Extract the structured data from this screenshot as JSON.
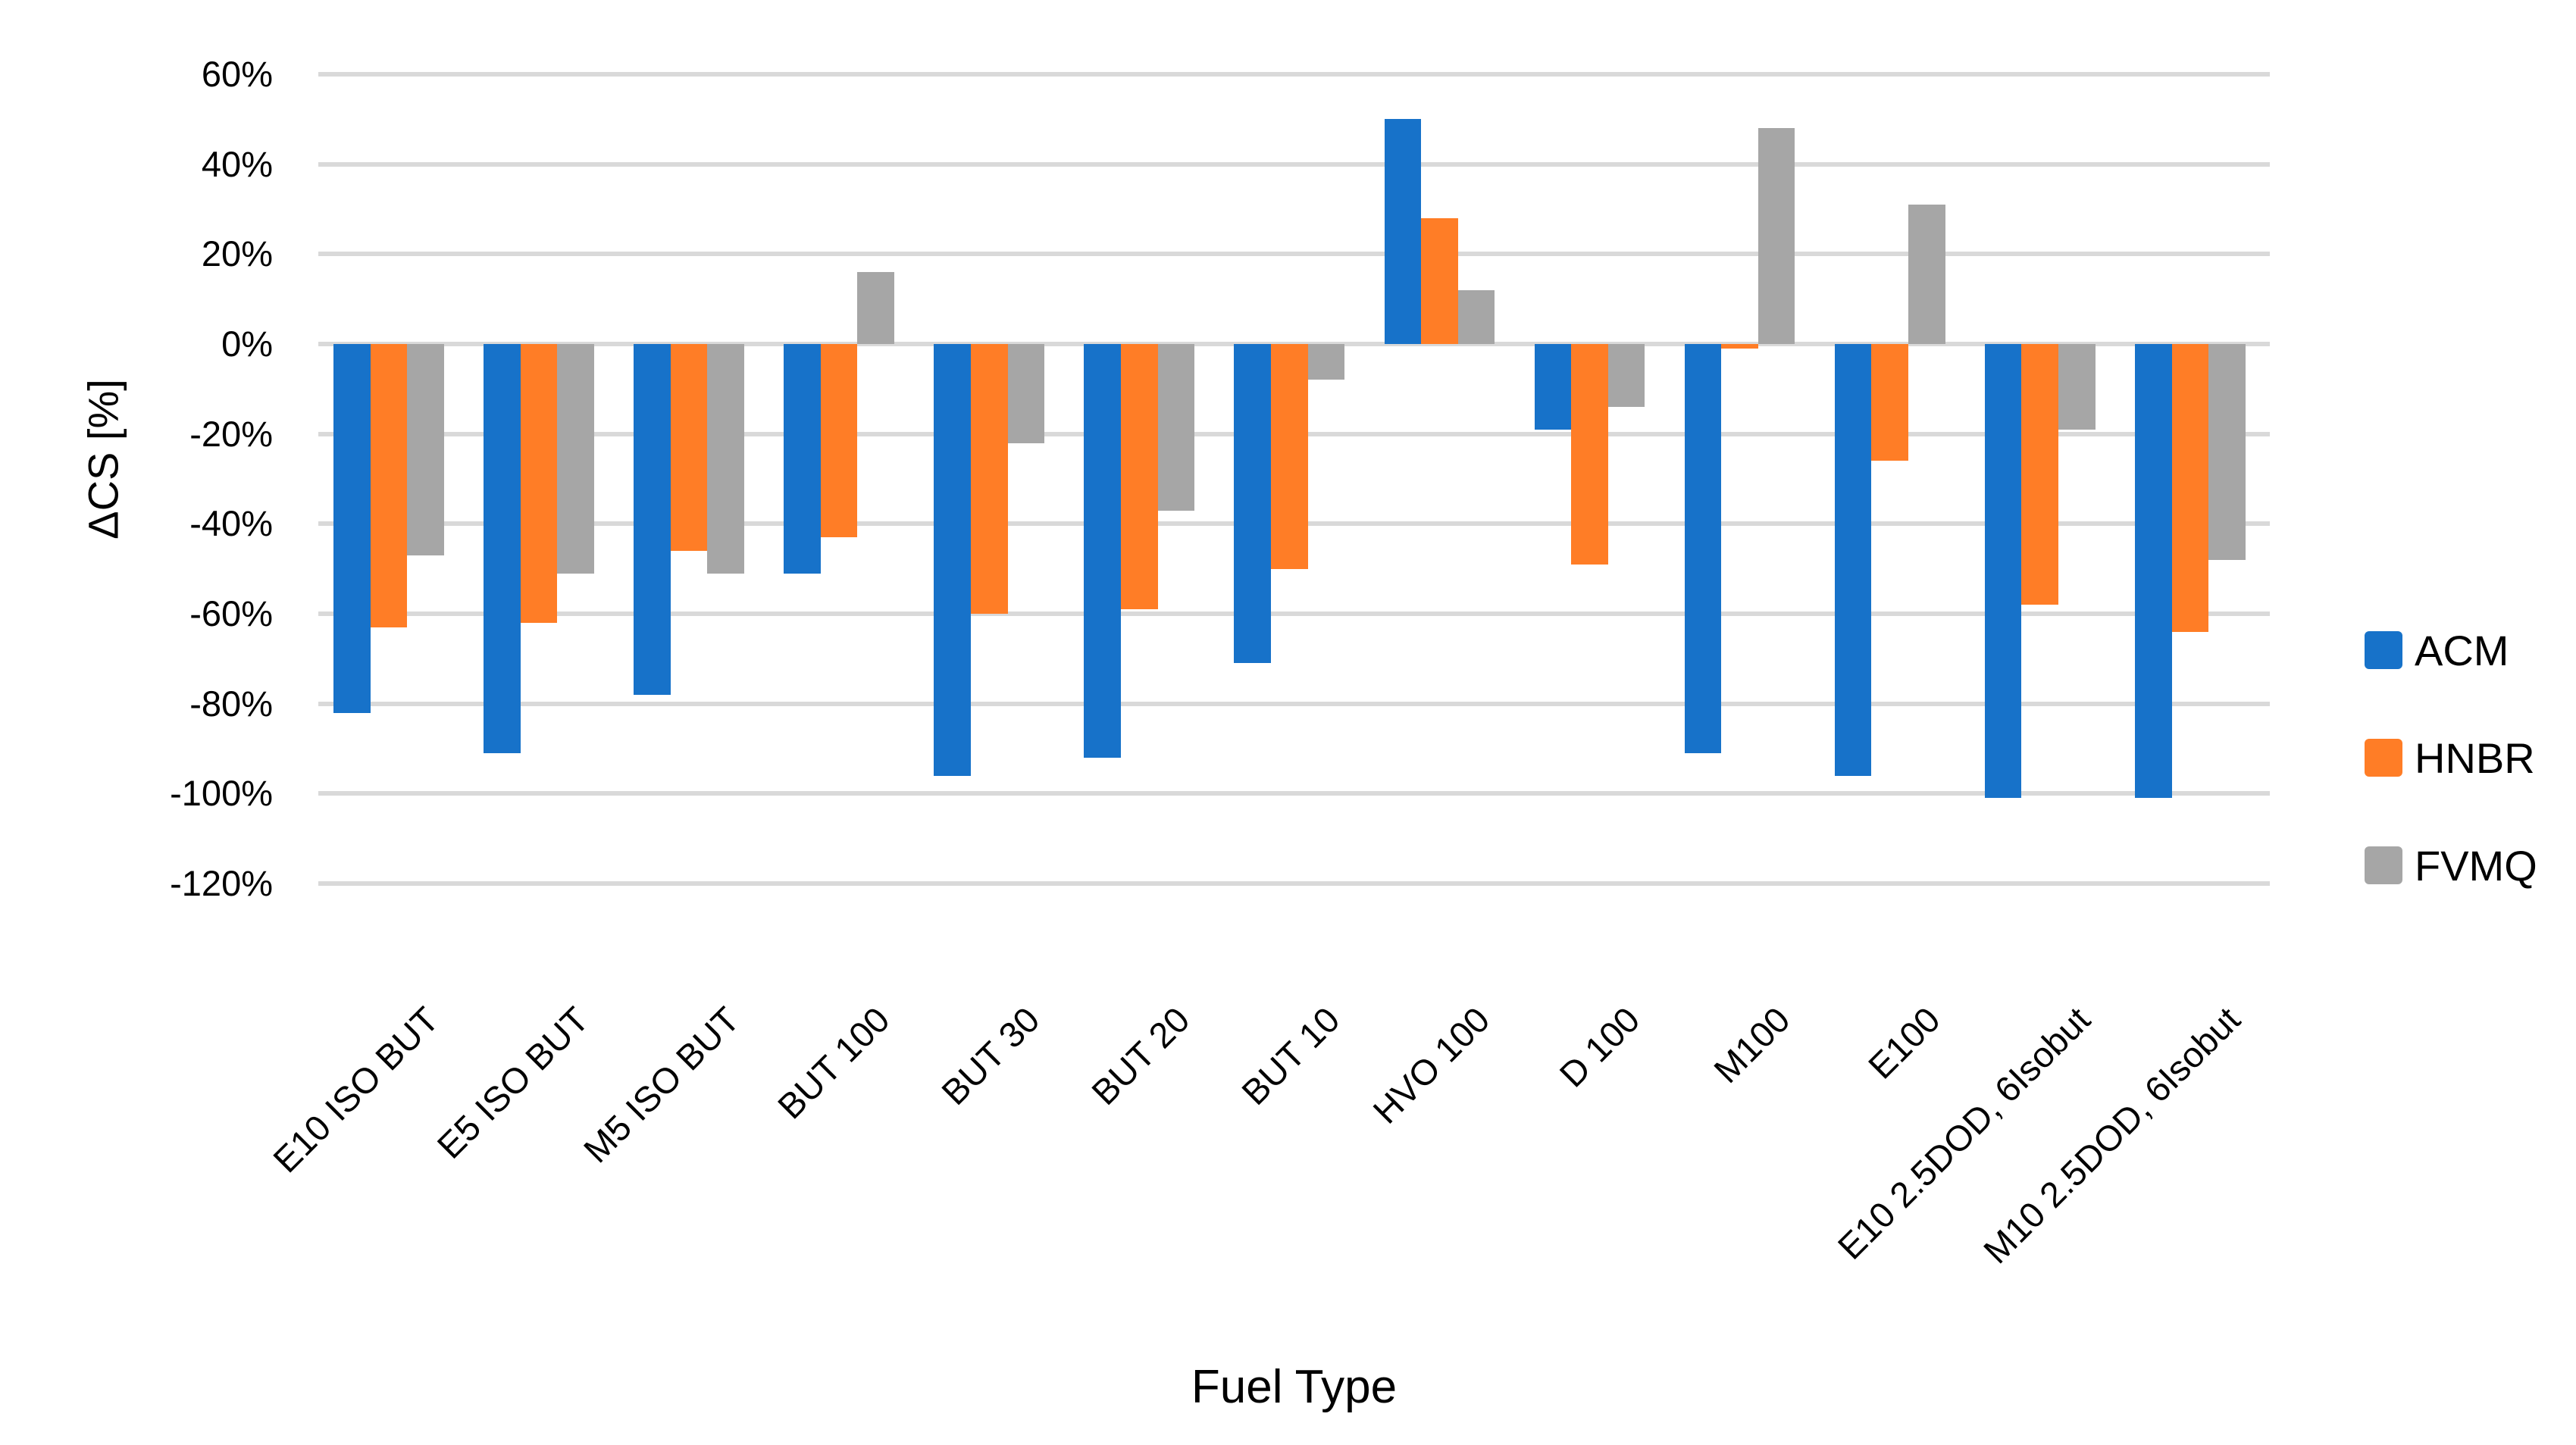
{
  "chart_data": {
    "type": "bar",
    "title": "",
    "xlabel": "Fuel Type",
    "ylabel": "ΔCS [%]",
    "categories": [
      "E10 ISO BUT",
      "E5 ISO BUT",
      "M5 ISO BUT",
      "BUT 100",
      "BUT 30",
      "BUT 20",
      "BUT 10",
      "HVO 100",
      "D 100",
      "M100",
      "E100",
      "E10 2.5DOD, 6Isobut",
      "M10 2.5DOD, 6Isobut"
    ],
    "series": [
      {
        "name": "ACM",
        "color": "#1772C9",
        "values": [
          -82,
          -91,
          -78,
          -51,
          -96,
          -92,
          -71,
          50,
          -19,
          -91,
          -96,
          -101,
          -101
        ]
      },
      {
        "name": "HNBR",
        "color": "#FF7D26",
        "values": [
          -63,
          -62,
          -46,
          -43,
          -60,
          -59,
          -50,
          28,
          -49,
          -1,
          -26,
          -58,
          -64
        ]
      },
      {
        "name": "FVMQ",
        "color": "#A6A6A6",
        "values": [
          -47,
          -51,
          -51,
          16,
          -22,
          -37,
          -8,
          12,
          -14,
          48,
          31,
          -19,
          -48
        ]
      }
    ],
    "y_axis": {
      "min": -120,
      "max": 60,
      "step": 20,
      "tick_labels": [
        "60%",
        "40%",
        "20%",
        "0%",
        "-20%",
        "-40%",
        "-60%",
        "-80%",
        "-100%",
        "-120%"
      ]
    },
    "grid": true,
    "legend_position": "right",
    "gridline_color": "#D9D9D9"
  }
}
